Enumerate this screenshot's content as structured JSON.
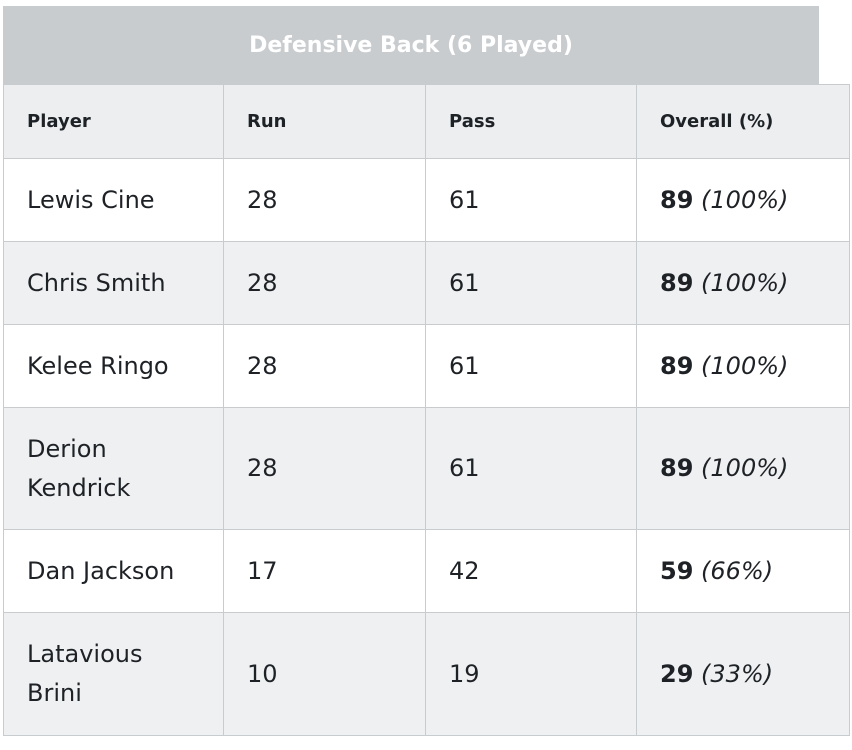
{
  "table": {
    "title": "Defensive Back (6 Played)",
    "headers": {
      "player": "Player",
      "run": "Run",
      "pass": "Pass",
      "overall": "Overall (%)"
    },
    "rows": [
      {
        "player": "Lewis Cine",
        "run": "28",
        "pass": "61",
        "overall": "89",
        "percent": "(100%)"
      },
      {
        "player": "Chris Smith",
        "run": "28",
        "pass": "61",
        "overall": "89",
        "percent": "(100%)"
      },
      {
        "player": "Kelee Ringo",
        "run": "28",
        "pass": "61",
        "overall": "89",
        "percent": "(100%)"
      },
      {
        "player": "Derion Kendrick",
        "run": "28",
        "pass": "61",
        "overall": "89",
        "percent": "(100%)"
      },
      {
        "player": "Dan Jackson",
        "run": "17",
        "pass": "42",
        "overall": "59",
        "percent": "(66%)"
      },
      {
        "player": "Latavious Brini",
        "run": "10",
        "pass": "19",
        "overall": "29",
        "percent": "(33%)"
      }
    ]
  }
}
